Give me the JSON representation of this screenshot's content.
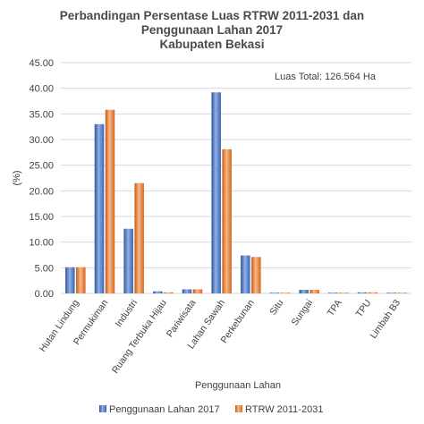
{
  "chart_data": {
    "type": "bar",
    "title_lines": [
      "Perbandingan Persentase Luas RTRW 2011-2031 dan",
      "Penggunaan Lahan 2017",
      "Kabupaten Bekasi"
    ],
    "annotation": "Luas Total: 126.564 Ha",
    "xlabel": "Penggunaan Lahan",
    "ylabel": "(%)",
    "ylim": [
      0,
      45
    ],
    "yticks": [
      "0.00",
      "5.00",
      "10.00",
      "15.00",
      "20.00",
      "25.00",
      "30.00",
      "35.00",
      "40.00",
      "45.00"
    ],
    "categories": [
      "Hutan Lindung",
      "Permukiman",
      "Industri",
      "Ruang Terbuka Hijau",
      "Pariwisata",
      "Lahan Sawah",
      "Perkebunan",
      "Situ",
      "Sungai",
      "TPA",
      "TPU",
      "Limbah B3"
    ],
    "series": [
      {
        "name": "Penggunaan Lahan 2017",
        "color": "#4472c4",
        "values": [
          5.1,
          33.0,
          12.6,
          0.4,
          0.8,
          39.2,
          7.4,
          0.1,
          0.7,
          0.05,
          0.2,
          0.05
        ]
      },
      {
        "name": "RTRW 2011-2031",
        "color": "#ed7d31",
        "values": [
          5.1,
          35.8,
          21.5,
          0.2,
          0.8,
          28.1,
          7.1,
          0.1,
          0.7,
          0.05,
          0.2,
          0.05
        ]
      }
    ],
    "grid": true,
    "legend": "bottom"
  }
}
